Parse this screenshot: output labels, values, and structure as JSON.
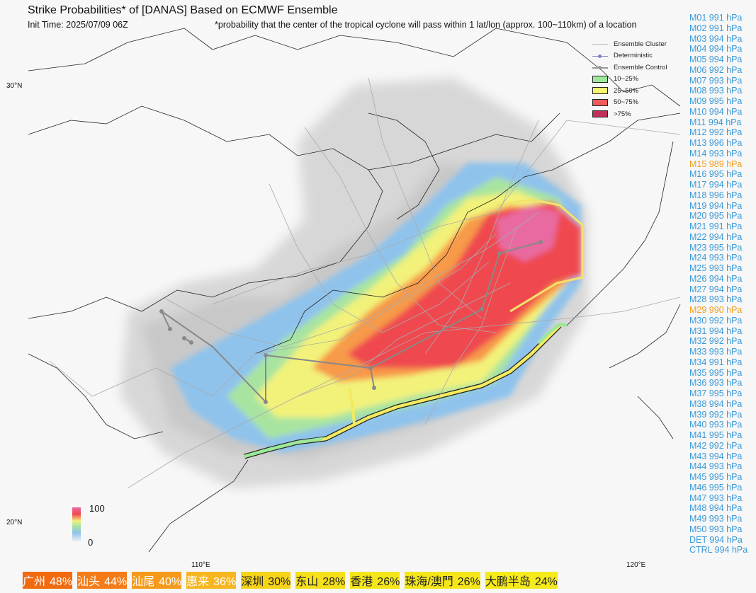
{
  "header": {
    "title": "Strike Probabilities* of [DANAS] Based on ECMWF Ensemble",
    "init_time": "Init Time: 2025/07/09 06Z",
    "note": "*probability that the center of the tropical cyclone will pass within 1 lat/lon (approx. 100~110km) of a location"
  },
  "legend": {
    "items": [
      {
        "label": "Ensemble Cluster",
        "kind": "line",
        "color": "#bbbbbb"
      },
      {
        "label": "Deterministic",
        "kind": "dotline",
        "color": "#8080c0"
      },
      {
        "label": "Ensemble Control",
        "kind": "dotline",
        "color": "#999999"
      },
      {
        "label": "10~25%",
        "kind": "box",
        "color": "#9be89b"
      },
      {
        "label": "25~50%",
        "kind": "box",
        "color": "#f5f570"
      },
      {
        "label": "50~75%",
        "kind": "box",
        "color": "#f05a5a"
      },
      {
        "label": ">75%",
        "kind": "box",
        "color": "#c0305a"
      }
    ]
  },
  "colorbar": {
    "max_label": "100",
    "min_label": "0"
  },
  "axes": {
    "lat_labels": [
      "30°N",
      "20°N"
    ],
    "lon_labels": [
      "110°E",
      "120°E"
    ]
  },
  "members": [
    {
      "text": "M01 991 hPa",
      "color": "#3a9ad9"
    },
    {
      "text": "M02 991 hPa",
      "color": "#3a9ad9"
    },
    {
      "text": "M03 994 hPa",
      "color": "#3a9ad9"
    },
    {
      "text": "M04 994 hPa",
      "color": "#3a9ad9"
    },
    {
      "text": "M05 994 hPa",
      "color": "#3a9ad9"
    },
    {
      "text": "M06 992 hPa",
      "color": "#3a9ad9"
    },
    {
      "text": "M07 993 hPa",
      "color": "#3a9ad9"
    },
    {
      "text": "M08 993 hPa",
      "color": "#3a9ad9"
    },
    {
      "text": "M09 995 hPa",
      "color": "#3a9ad9"
    },
    {
      "text": "M10 994 hPa",
      "color": "#3a9ad9"
    },
    {
      "text": "M11 994 hPa",
      "color": "#3a9ad9"
    },
    {
      "text": "M12 992 hPa",
      "color": "#3a9ad9"
    },
    {
      "text": "M13 996 hPa",
      "color": "#3a9ad9"
    },
    {
      "text": "M14 993 hPa",
      "color": "#3a9ad9"
    },
    {
      "text": "M15 989 hPa",
      "color": "#f0a020"
    },
    {
      "text": "M16 995 hPa",
      "color": "#3a9ad9"
    },
    {
      "text": "M17 994 hPa",
      "color": "#3a9ad9"
    },
    {
      "text": "M18 996 hPa",
      "color": "#3a9ad9"
    },
    {
      "text": "M19 994 hPa",
      "color": "#3a9ad9"
    },
    {
      "text": "M20 995 hPa",
      "color": "#3a9ad9"
    },
    {
      "text": "M21 991 hPa",
      "color": "#3a9ad9"
    },
    {
      "text": "M22 994 hPa",
      "color": "#3a9ad9"
    },
    {
      "text": "M23 995 hPa",
      "color": "#3a9ad9"
    },
    {
      "text": "M24 993 hPa",
      "color": "#3a9ad9"
    },
    {
      "text": "M25 993 hPa",
      "color": "#3a9ad9"
    },
    {
      "text": "M26 994 hPa",
      "color": "#3a9ad9"
    },
    {
      "text": "M27 994 hPa",
      "color": "#3a9ad9"
    },
    {
      "text": "M28 993 hPa",
      "color": "#3a9ad9"
    },
    {
      "text": "M29 990 hPa",
      "color": "#f0a020"
    },
    {
      "text": "M30 992 hPa",
      "color": "#3a9ad9"
    },
    {
      "text": "M31 994 hPa",
      "color": "#3a9ad9"
    },
    {
      "text": "M32 992 hPa",
      "color": "#3a9ad9"
    },
    {
      "text": "M33 993 hPa",
      "color": "#3a9ad9"
    },
    {
      "text": "M34 991 hPa",
      "color": "#3a9ad9"
    },
    {
      "text": "M35 995 hPa",
      "color": "#3a9ad9"
    },
    {
      "text": "M36 993 hPa",
      "color": "#3a9ad9"
    },
    {
      "text": "M37 995 hPa",
      "color": "#3a9ad9"
    },
    {
      "text": "M38 994 hPa",
      "color": "#3a9ad9"
    },
    {
      "text": "M39 992 hPa",
      "color": "#3a9ad9"
    },
    {
      "text": "M40 993 hPa",
      "color": "#3a9ad9"
    },
    {
      "text": "M41 995 hPa",
      "color": "#3a9ad9"
    },
    {
      "text": "M42 992 hPa",
      "color": "#3a9ad9"
    },
    {
      "text": "M43 994 hPa",
      "color": "#3a9ad9"
    },
    {
      "text": "M44 993 hPa",
      "color": "#3a9ad9"
    },
    {
      "text": "M45 995 hPa",
      "color": "#3a9ad9"
    },
    {
      "text": "M46 995 hPa",
      "color": "#3a9ad9"
    },
    {
      "text": "M47 993 hPa",
      "color": "#3a9ad9"
    },
    {
      "text": "M48 994 hPa",
      "color": "#3a9ad9"
    },
    {
      "text": "M49 993 hPa",
      "color": "#3a9ad9"
    },
    {
      "text": "M50 993 hPa",
      "color": "#3a9ad9"
    },
    {
      "text": "DET 994 hPa",
      "color": "#3a9ad9"
    },
    {
      "text": "CTRL 994 hPa",
      "color": "#3a9ad9"
    }
  ],
  "badges": [
    {
      "name": "广州",
      "prob": "48%",
      "color": "#f26a10",
      "text_color": "#ffffff"
    },
    {
      "name": "汕头",
      "prob": "44%",
      "color": "#f47c18",
      "text_color": "#ffffff"
    },
    {
      "name": "汕尾",
      "prob": "40%",
      "color": "#f59a1c",
      "text_color": "#ffffff"
    },
    {
      "name": "惠来",
      "prob": "36%",
      "color": "#f7b620",
      "text_color": "#ffffff"
    },
    {
      "name": "深圳",
      "prob": "30%",
      "color": "#f5d418",
      "text_color": "#222222"
    },
    {
      "name": "东山",
      "prob": "28%",
      "color": "#f5e01a",
      "text_color": "#222222"
    },
    {
      "name": "香港",
      "prob": "26%",
      "color": "#f5e61a",
      "text_color": "#222222"
    },
    {
      "name": "珠海/澳門",
      "prob": "26%",
      "color": "#f5e61a",
      "text_color": "#222222"
    },
    {
      "name": "大鹏半岛",
      "prob": "24%",
      "color": "#f5ea1a",
      "text_color": "#222222"
    }
  ]
}
